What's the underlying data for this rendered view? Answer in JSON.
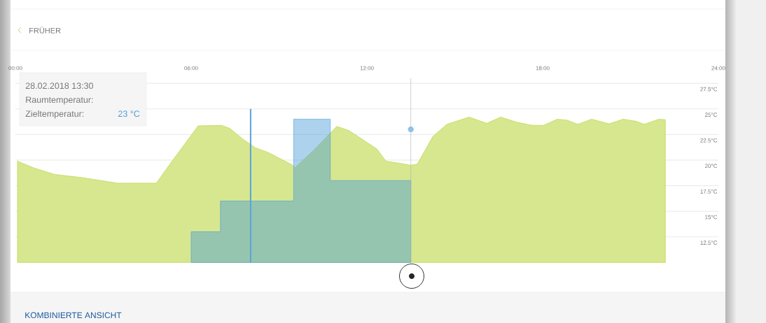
{
  "chart_data": {
    "type": "area",
    "xlim": [
      0,
      24
    ],
    "ylim": [
      10,
      28
    ],
    "xticks": [
      {
        "value": 0,
        "label": "00:00"
      },
      {
        "value": 6,
        "label": "06:00"
      },
      {
        "value": 12,
        "label": "12:00"
      },
      {
        "value": 18,
        "label": "18:00"
      },
      {
        "value": 24,
        "label": "24:00"
      }
    ],
    "yticks": [
      {
        "value": 12.5,
        "label": "12.5°C"
      },
      {
        "value": 15,
        "label": "15°C"
      },
      {
        "value": 17.5,
        "label": "17.5°C"
      },
      {
        "value": 20,
        "label": "20°C"
      },
      {
        "value": 22.5,
        "label": "22.5°C"
      },
      {
        "value": 25,
        "label": "25°C"
      },
      {
        "value": 27.5,
        "label": "27.5°C"
      }
    ],
    "grid": "y",
    "series": [
      {
        "color": "#b5d334",
        "x": [
          0.07,
          0.62,
          1.34,
          2.25,
          3.49,
          4.81,
          5.4,
          6.24,
          7.03,
          7.32,
          7.79,
          8.2,
          8.63,
          9.47,
          9.54,
          10.2,
          10.97,
          11.38,
          12.34,
          12.65,
          13.12,
          13.48,
          13.72,
          14.25,
          14.73,
          15.49,
          16.09,
          16.57,
          17.12,
          17.64,
          18.03,
          18.5,
          18.84,
          19.2,
          19.67,
          20.27,
          20.75,
          21.18,
          21.47,
          21.97,
          22.19
        ],
        "values": [
          19.9,
          19.25,
          18.6,
          18.3,
          17.75,
          17.75,
          20.1,
          23.35,
          23.4,
          23.1,
          22.0,
          21.2,
          20.75,
          19.5,
          19.25,
          21.0,
          23.3,
          22.9,
          21.1,
          19.9,
          19.7,
          19.5,
          19.6,
          22.3,
          23.5,
          24.2,
          23.6,
          24.2,
          23.7,
          23.4,
          23.4,
          24.0,
          23.9,
          23.5,
          24.0,
          23.55,
          24.0,
          23.8,
          23.5,
          24.0,
          23.95
        ]
      },
      {
        "type": "area",
        "color": "#4a9bd6",
        "x": [
          6,
          7,
          7,
          9.5,
          9.5,
          10.75,
          10.75,
          13.5
        ],
        "values": [
          13,
          13,
          16,
          16,
          24,
          24,
          18,
          18
        ]
      },
      {
        "type": "bar",
        "color": "#5ba3d9",
        "x": [
          8.03
        ],
        "values": [
          25
        ]
      },
      {
        "type": "scatter",
        "color": "#8fc1e8",
        "marker": "circle",
        "x": [
          13.5
        ],
        "values": [
          23
        ]
      }
    ],
    "ref_lines": [
      {
        "axis": "x",
        "value": 13.5,
        "color": "#b0b0b0"
      }
    ],
    "annotations": [
      "FRÜHER",
      "28.02.2018 13:30",
      "Raumtemperatur:",
      "Zieltemperatur:",
      "23 °C",
      "KOMBINIERTE ANSICHT"
    ]
  }
}
